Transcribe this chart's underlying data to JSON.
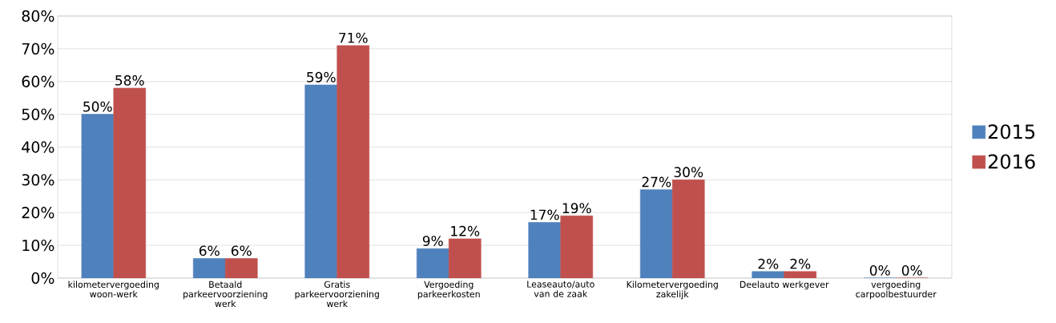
{
  "chart_data": {
    "type": "bar",
    "categories": [
      "kilometervergoeding woon-werk",
      "Betaald parkeervoorziening werk",
      "Gratis parkeervoorziening werk",
      "Vergoeding parkeerkosten",
      "Leaseauto/auto van de zaak",
      "Kilometervergoeding zakelijk",
      "Deelauto werkgever",
      "vergoeding carpoolbestuurder"
    ],
    "series": [
      {
        "name": "2015",
        "color": "#4f81bd",
        "values": [
          50,
          6,
          59,
          9,
          17,
          27,
          2,
          0
        ],
        "value_labels": [
          "50%",
          "6%",
          "59%",
          "9%",
          "17%",
          "27%",
          "2%",
          "0%"
        ]
      },
      {
        "name": "2016",
        "color": "#c0504d",
        "values": [
          58,
          6,
          71,
          12,
          19,
          30,
          2,
          0
        ],
        "value_labels": [
          "58%",
          "6%",
          "71%",
          "12%",
          "19%",
          "30%",
          "2%",
          "0%"
        ]
      }
    ],
    "ylim": [
      0,
      80
    ],
    "yticks": [
      {
        "value": 0,
        "label": "0%"
      },
      {
        "value": 10,
        "label": "10%"
      },
      {
        "value": 20,
        "label": "20%"
      },
      {
        "value": 30,
        "label": "30%"
      },
      {
        "value": 40,
        "label": "40%"
      },
      {
        "value": 50,
        "label": "50%"
      },
      {
        "value": 60,
        "label": "60%"
      },
      {
        "value": 70,
        "label": "70%"
      },
      {
        "value": 80,
        "label": "80%"
      }
    ],
    "grid": "y",
    "legend": "right"
  }
}
